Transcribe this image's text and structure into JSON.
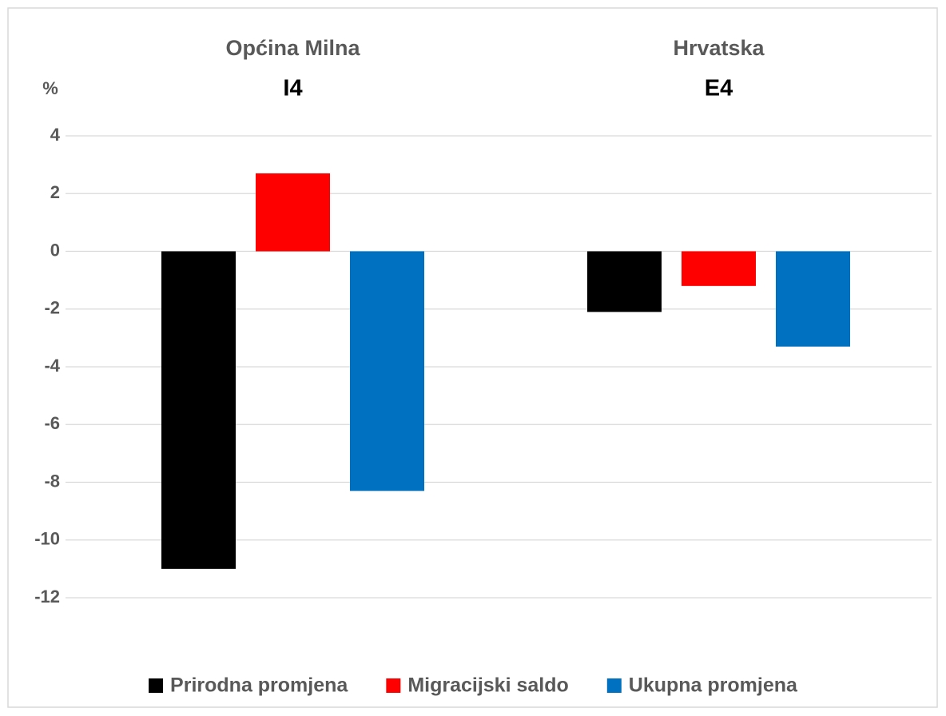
{
  "chart_data": {
    "type": "bar",
    "y_label": "%",
    "categories": [
      "Općina Milna",
      "Hrvatska"
    ],
    "category_codes": [
      "I4",
      "E4"
    ],
    "series": [
      {
        "name": "Prirodna promjena",
        "color": "#000000",
        "values": [
          -11,
          -2.1
        ]
      },
      {
        "name": "Migracijski saldo",
        "color": "#ff0000",
        "values": [
          2.7,
          -1.2
        ]
      },
      {
        "name": "Ukupna promjena",
        "color": "#0070c0",
        "values": [
          -8.3,
          -3.3
        ]
      }
    ],
    "ylim": [
      -12,
      4
    ],
    "yticks": [
      -12,
      -10,
      -8,
      -6,
      -4,
      -2,
      0,
      2,
      4
    ],
    "grid": true,
    "legend": "bottom"
  }
}
